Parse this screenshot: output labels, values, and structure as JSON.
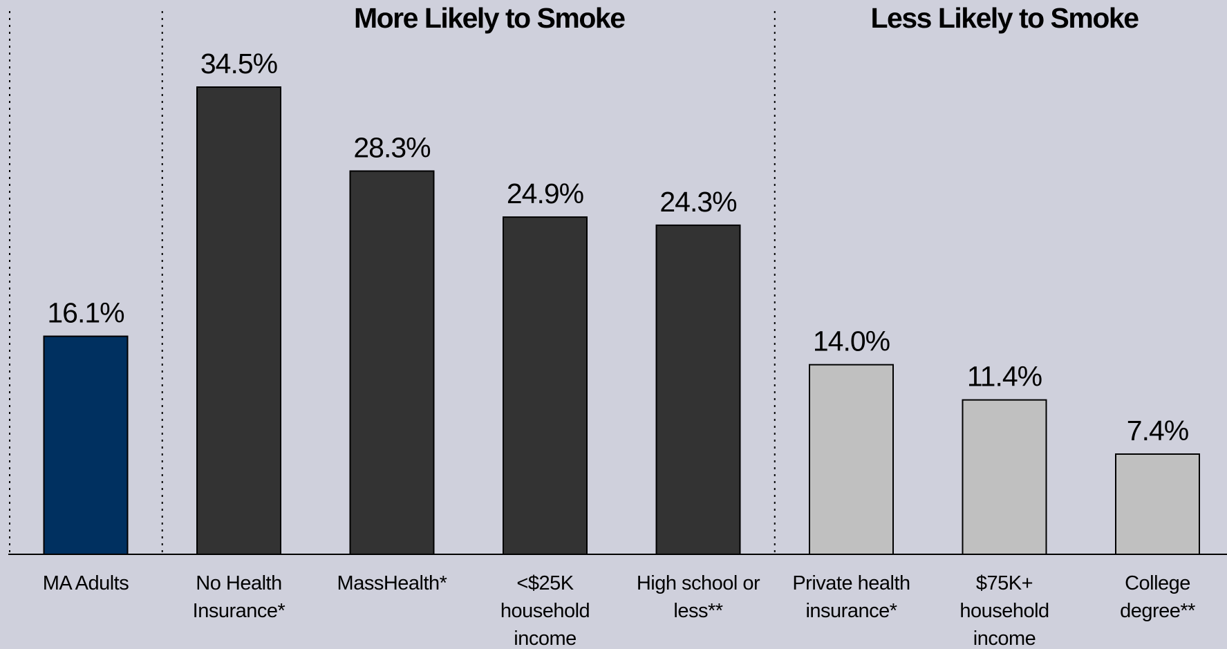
{
  "chart_data": {
    "type": "bar",
    "title": "",
    "xlabel": "",
    "ylabel": "",
    "ylim": [
      0,
      34.5
    ],
    "grid": false,
    "legend": "none",
    "value_format": "{v}%",
    "groups": [
      {
        "title": "",
        "indices": [
          0
        ]
      },
      {
        "title": "More Likely to Smoke",
        "indices": [
          1,
          2,
          3,
          4
        ]
      },
      {
        "title": "Less Likely to Smoke",
        "indices": [
          5,
          6,
          7
        ]
      }
    ],
    "categories": [
      [
        "MA Adults"
      ],
      [
        "No Health",
        "Insurance*"
      ],
      [
        "MassHealth*"
      ],
      [
        "<$25K",
        "household",
        "income"
      ],
      [
        "High school or",
        "less**"
      ],
      [
        "Private health",
        "insurance*"
      ],
      [
        "$75K+",
        "household",
        "income"
      ],
      [
        "College",
        "degree**"
      ]
    ],
    "values": [
      16.1,
      34.5,
      28.3,
      24.9,
      24.3,
      14.0,
      11.4,
      7.4
    ],
    "value_labels": [
      "16.1%",
      "34.5%",
      "28.3%",
      "24.9%",
      "24.3%",
      "14.0%",
      "11.4%",
      "7.4%"
    ],
    "colors": [
      "#003060",
      "#333333",
      "#333333",
      "#333333",
      "#333333",
      "#c0c0c0",
      "#c0c0c0",
      "#c0c0c0"
    ]
  }
}
